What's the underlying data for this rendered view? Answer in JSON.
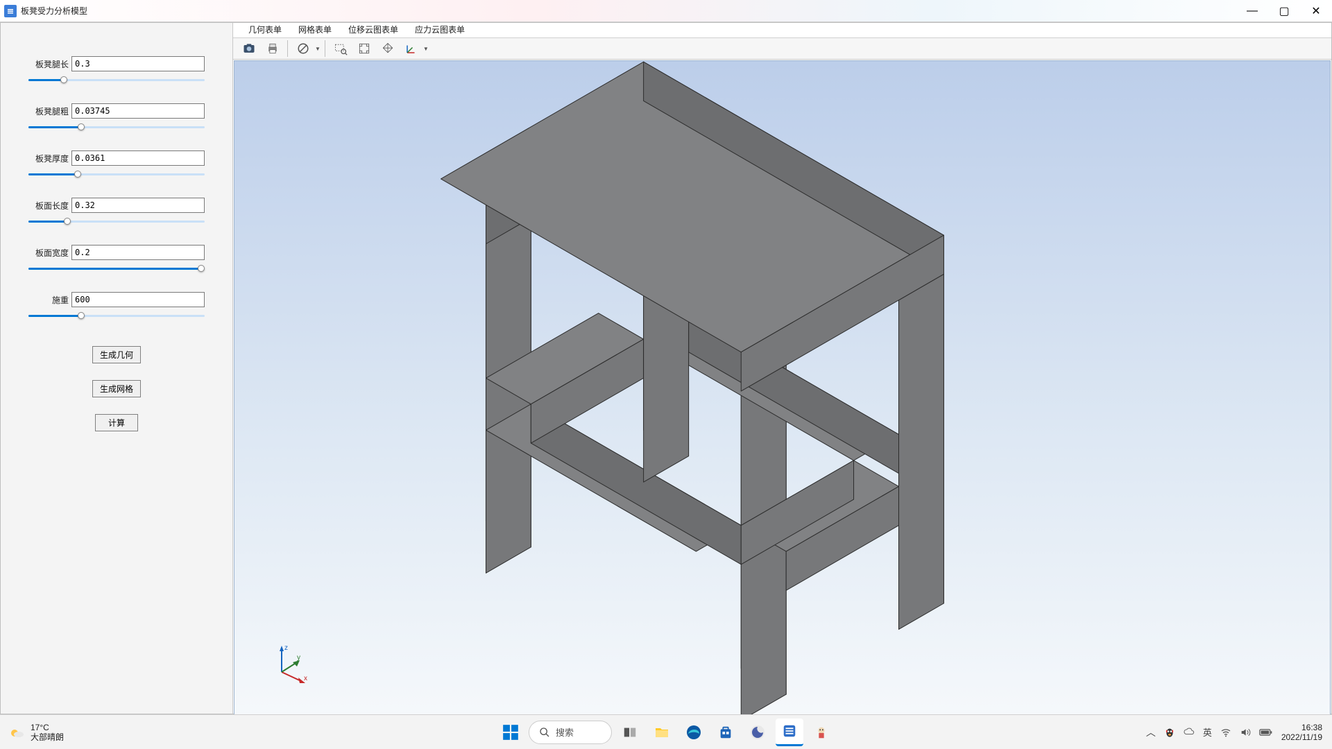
{
  "window": {
    "title": "板凳受力分析模型",
    "controls": {
      "minimize": "—",
      "maximize": "▢",
      "close": "✕"
    }
  },
  "sidebar": {
    "params": [
      {
        "label": "板凳腿长",
        "value": "0.3",
        "slider_pct": 20
      },
      {
        "label": "板凳腿粗",
        "value": "0.03745",
        "slider_pct": 30
      },
      {
        "label": "板凳厚度",
        "value": "0.0361",
        "slider_pct": 28
      },
      {
        "label": "板面长度",
        "value": "0.32",
        "slider_pct": 22
      },
      {
        "label": "板面宽度",
        "value": "0.2",
        "slider_pct": 98
      },
      {
        "label": "施重",
        "value": "600",
        "slider_pct": 30
      }
    ],
    "buttons": {
      "gen_geometry": "生成几何",
      "gen_mesh": "生成网格",
      "compute": "计算"
    }
  },
  "tabs": [
    "几何表单",
    "网格表单",
    "位移云图表单",
    "应力云图表单"
  ],
  "toolbar": {
    "icons": [
      "camera",
      "print",
      "circle-slash",
      "zoom-rect",
      "fit-screen",
      "diamond",
      "axes-orient"
    ]
  },
  "viewport": {
    "stool_color_top": "#818284",
    "stool_color_left": "#6d6e70",
    "stool_color_right": "#77787a",
    "edge_color": "#2c2c2c",
    "triad": {
      "x": "x",
      "y": "y",
      "z": "z"
    }
  },
  "taskbar": {
    "weather": {
      "temp": "17°C",
      "desc": "大部晴朗"
    },
    "search_placeholder": "搜索",
    "ime": "英",
    "time": "16:38",
    "date": "2022/11/19"
  }
}
